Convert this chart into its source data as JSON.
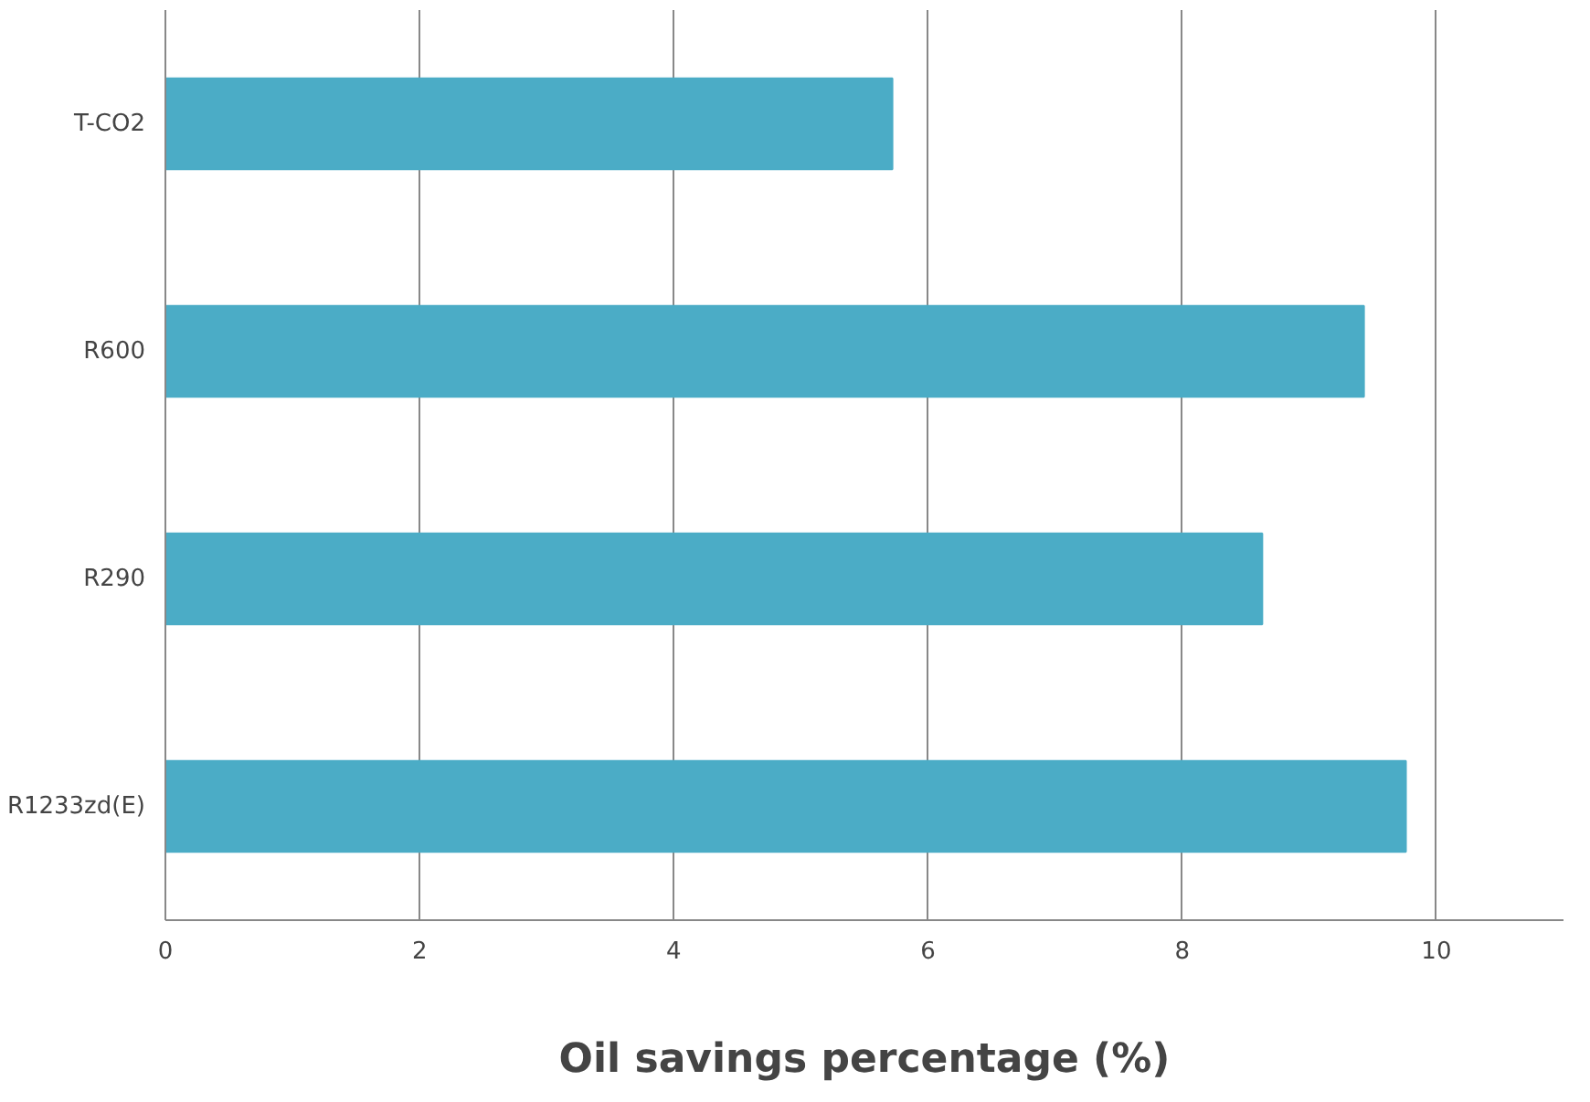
{
  "chart_data": {
    "type": "bar",
    "orientation": "horizontal",
    "xlabel": "Oil savings percentage (%)",
    "categories": [
      "T-CO2",
      "R600",
      "R290",
      "R1233zd(E)"
    ],
    "values": [
      5.72,
      9.43,
      8.63,
      9.76
    ],
    "color": "#4bacc6",
    "xlim": [
      0,
      11
    ],
    "xticks": [
      0,
      2,
      4,
      6,
      8,
      10
    ],
    "grid": "x"
  }
}
